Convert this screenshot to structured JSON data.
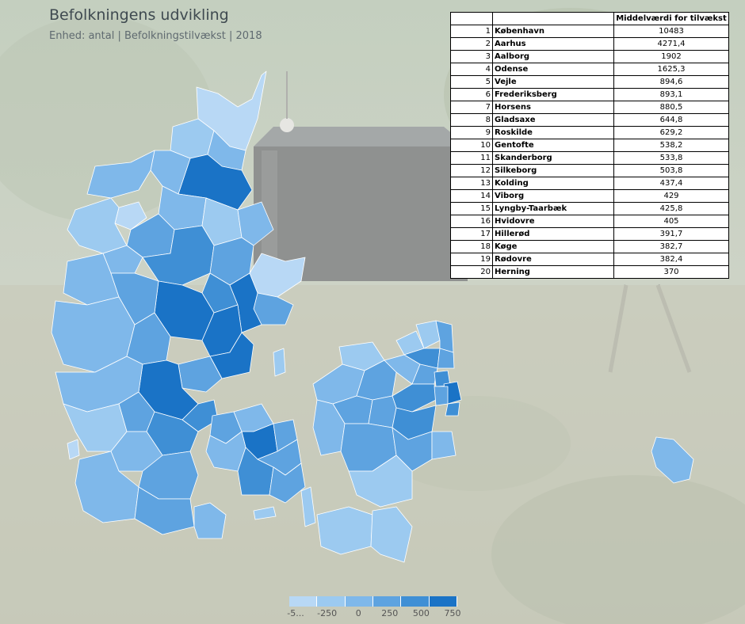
{
  "header": {
    "title": "Befolkningens udvikling",
    "subtitle": "Enhed: antal | Befolkningstilvækst | 2018"
  },
  "table": {
    "column_header": "Middelværdi for tilvækst",
    "rows": [
      {
        "rank": "1",
        "name": "København",
        "value": "10483"
      },
      {
        "rank": "2",
        "name": "Aarhus",
        "value": "4271,4"
      },
      {
        "rank": "3",
        "name": "Aalborg",
        "value": "1902"
      },
      {
        "rank": "4",
        "name": "Odense",
        "value": "1625,3"
      },
      {
        "rank": "5",
        "name": "Vejle",
        "value": "894,6"
      },
      {
        "rank": "6",
        "name": "Frederiksberg",
        "value": "893,1"
      },
      {
        "rank": "7",
        "name": "Horsens",
        "value": "880,5"
      },
      {
        "rank": "8",
        "name": "Gladsaxe",
        "value": "644,8"
      },
      {
        "rank": "9",
        "name": "Roskilde",
        "value": "629,2"
      },
      {
        "rank": "10",
        "name": "Gentofte",
        "value": "538,2"
      },
      {
        "rank": "11",
        "name": "Skanderborg",
        "value": "533,8"
      },
      {
        "rank": "12",
        "name": "Silkeborg",
        "value": "503,8"
      },
      {
        "rank": "13",
        "name": "Kolding",
        "value": "437,4"
      },
      {
        "rank": "14",
        "name": "Viborg",
        "value": "429"
      },
      {
        "rank": "15",
        "name": "Lyngby-Taarbæk",
        "value": "425,8"
      },
      {
        "rank": "16",
        "name": "Hvidovre",
        "value": "405"
      },
      {
        "rank": "17",
        "name": "Hillerød",
        "value": "391,7"
      },
      {
        "rank": "18",
        "name": "Køge",
        "value": "382,7"
      },
      {
        "rank": "19",
        "name": "Rødovre",
        "value": "382,4"
      },
      {
        "rank": "20",
        "name": "Herning",
        "value": "370"
      }
    ]
  },
  "legend": {
    "ticks": [
      "-5...",
      "-250",
      "0",
      "250",
      "500",
      "750"
    ],
    "colors": [
      "#b8d8f5",
      "#9ccaf0",
      "#7fb8ea",
      "#5ea3e0",
      "#3f8fd5",
      "#1a73c6"
    ]
  },
  "colors": {
    "map_light": "#b8d8f5",
    "map_mid": "#5ea3e0",
    "map_dark": "#1a73c6",
    "background_overlay": "#dfe3dc"
  }
}
